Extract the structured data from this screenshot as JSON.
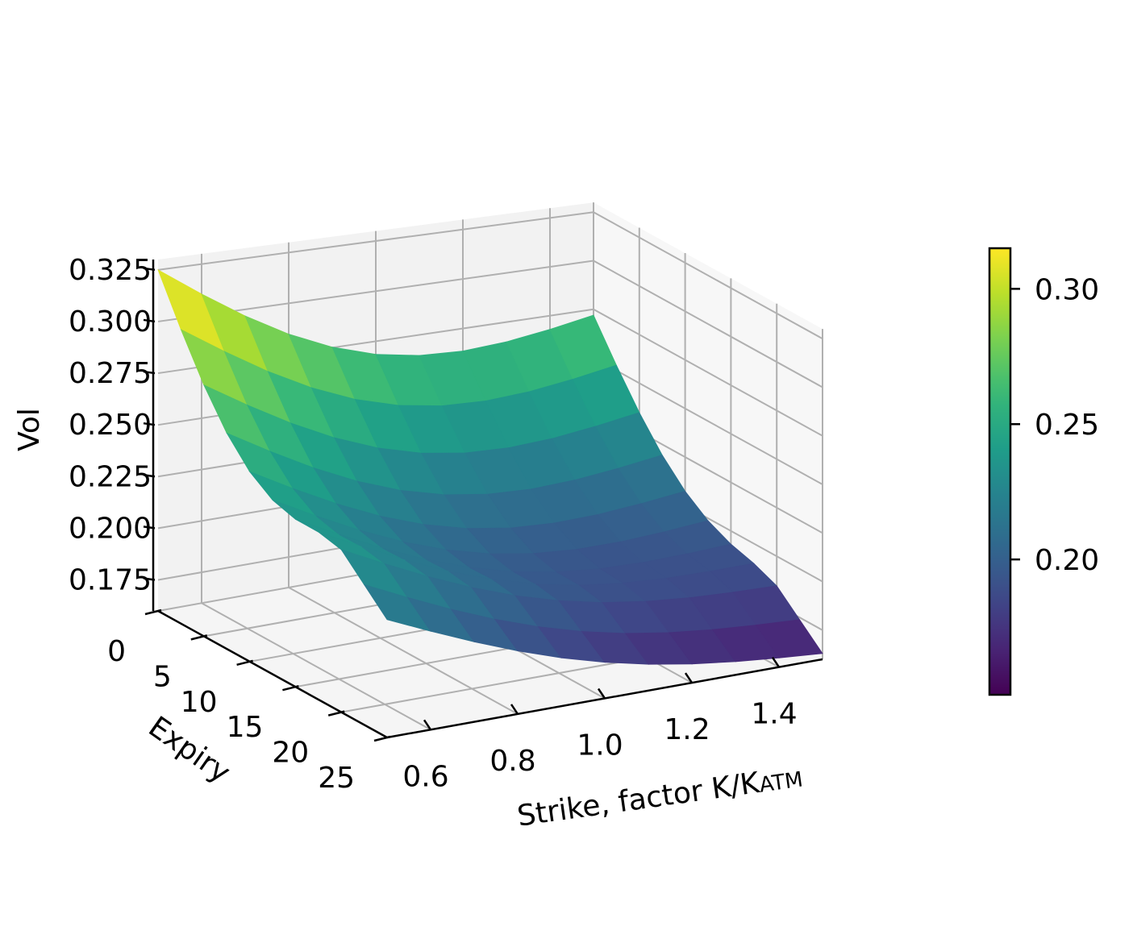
{
  "chart_data": {
    "type": "surface",
    "title": "",
    "xlabel": "Strike, factor K/K",
    "xlabel_sub": "ATM",
    "ylabel": "Expiry",
    "zlabel": "Vol",
    "x_ticks": [
      "0.6",
      "0.8",
      "1.0",
      "1.2",
      "1.4"
    ],
    "y_ticks": [
      "0",
      "5",
      "10",
      "15",
      "20",
      "25"
    ],
    "z_ticks": [
      "0.175",
      "0.200",
      "0.225",
      "0.250",
      "0.275",
      "0.300",
      "0.325"
    ],
    "strike": [
      0.5,
      0.6,
      0.7,
      0.8,
      0.9,
      1.0,
      1.1,
      1.2,
      1.3,
      1.4,
      1.5
    ],
    "expiry": [
      0,
      2.5,
      5,
      7.5,
      10,
      12.5,
      15,
      17.5,
      20,
      22.5,
      25
    ],
    "vol_corners": {
      "strike_0.5_expiry_0": 0.325,
      "strike_1.5_expiry_0": 0.272,
      "strike_0.5_expiry_25": 0.217,
      "strike_1.5_expiry_25": 0.163
    },
    "zlim": [
      0.16,
      0.33
    ],
    "colormap": "viridis",
    "colorbar": {
      "ticks": [
        "0.20",
        "0.25",
        "0.30"
      ],
      "range": [
        0.15,
        0.315
      ]
    },
    "grid": true
  }
}
